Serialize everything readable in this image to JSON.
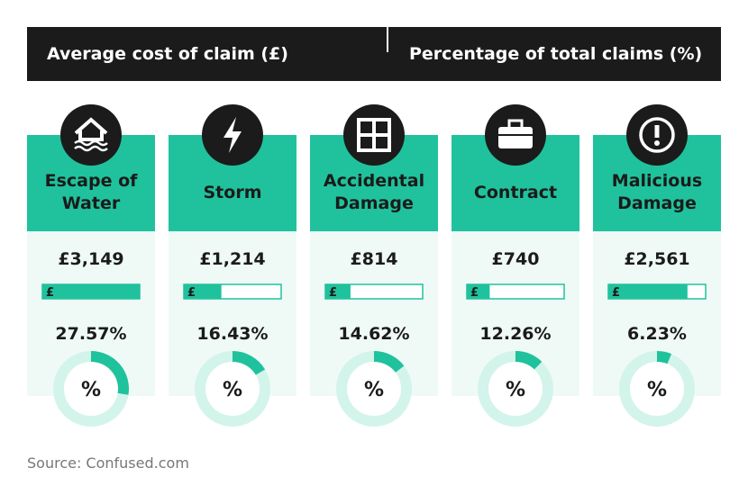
{
  "header": {
    "left": "Average cost of claim (£)",
    "right": "Percentage of total claims (%)"
  },
  "chart_data": {
    "type": "infographic",
    "categories": [
      "Escape of Water",
      "Storm",
      "Accidental Damage",
      "Contract",
      "Malicious Damage"
    ],
    "costs": {
      "values": [
        3149,
        1214,
        814,
        740,
        2561
      ],
      "value_labels": [
        "£3,149",
        "£1,214",
        "£814",
        "£740",
        "£2,561"
      ],
      "symbol": "£"
    },
    "shares": {
      "values": [
        27.57,
        16.43,
        14.62,
        12.26,
        6.23
      ],
      "value_labels": [
        "27.57%",
        "16.43%",
        "14.62%",
        "12.26%",
        "6.23%"
      ],
      "symbol": "%"
    },
    "color": "#1fc29c"
  },
  "source": "Source: Confused.com"
}
